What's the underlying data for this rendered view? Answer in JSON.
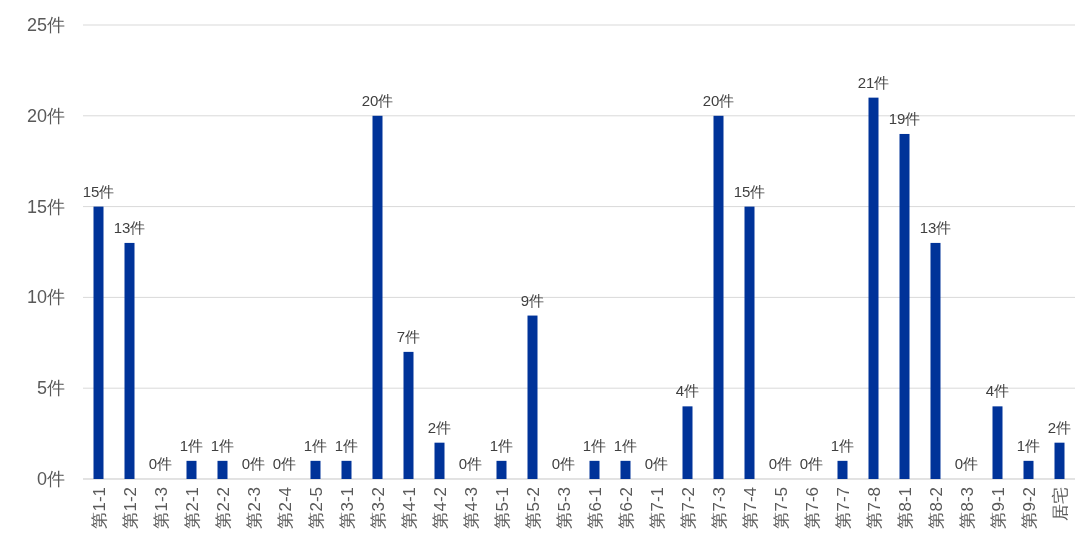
{
  "chart_data": {
    "type": "bar",
    "categories": [
      "第1-1",
      "第1-2",
      "第1-3",
      "第2-1",
      "第2-2",
      "第2-3",
      "第2-4",
      "第2-5",
      "第3-1",
      "第3-2",
      "第4-1",
      "第4-2",
      "第4-3",
      "第5-1",
      "第5-2",
      "第5-3",
      "第6-1",
      "第6-2",
      "第7-1",
      "第7-2",
      "第7-3",
      "第7-4",
      "第7-5",
      "第7-6",
      "第7-7",
      "第7-8",
      "第8-1",
      "第8-2",
      "第8-3",
      "第9-1",
      "第9-2",
      "居宅"
    ],
    "values": [
      15,
      13,
      0,
      1,
      1,
      0,
      0,
      1,
      1,
      20,
      7,
      2,
      0,
      1,
      9,
      0,
      1,
      1,
      0,
      4,
      20,
      15,
      0,
      0,
      1,
      21,
      19,
      13,
      0,
      4,
      1,
      2
    ],
    "value_labels": [
      "15件",
      "13件",
      "0件",
      "1件",
      "1件",
      "0件",
      "0件",
      "1件",
      "1件",
      "20件",
      "7件",
      "2件",
      "0件",
      "1件",
      "9件",
      "0件",
      "1件",
      "1件",
      "0件",
      "4件",
      "20件",
      "15件",
      "0件",
      "0件",
      "1件",
      "21件",
      "19件",
      "13件",
      "0件",
      "4件",
      "1件",
      "2件"
    ],
    "color": "#003399",
    "ylim": [
      0,
      25
    ],
    "yticks": [
      {
        "value": 0,
        "label": "0件"
      },
      {
        "value": 5,
        "label": "5件"
      },
      {
        "value": 10,
        "label": "10件"
      },
      {
        "value": 15,
        "label": "15件"
      },
      {
        "value": 20,
        "label": "20件"
      },
      {
        "value": 25,
        "label": "25件"
      }
    ],
    "grid": "y"
  }
}
